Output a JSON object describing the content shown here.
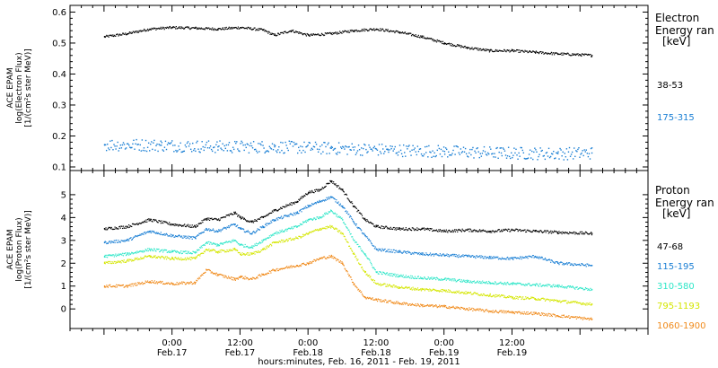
{
  "chart_data": [
    {
      "type": "scatter",
      "ylabel_lines": [
        "ACE EPAM",
        "log(Electron Flux)",
        "[1/(cm²s ster MeV)]"
      ],
      "ylim": [
        0.1,
        0.61
      ],
      "yticks": [
        0.1,
        0.2,
        0.3,
        0.4,
        0.5,
        0.6
      ],
      "yticklabels": [
        "0.1",
        "0.2",
        "0.3",
        "0.4",
        "0.5",
        "0.6"
      ],
      "legend_title_lines": [
        "Electron",
        "Energy ran",
        "[keV]"
      ],
      "legend_placement": "right",
      "grid": false,
      "series": [
        {
          "name": "38-53",
          "color": "#000000",
          "points": [
            [
              0,
              0.52
            ],
            [
              4,
              0.53
            ],
            [
              8,
              0.545
            ],
            [
              12,
              0.55
            ],
            [
              16,
              0.548
            ],
            [
              20,
              0.545
            ],
            [
              24,
              0.55
            ],
            [
              28,
              0.542
            ],
            [
              30,
              0.525
            ],
            [
              33,
              0.54
            ],
            [
              36,
              0.525
            ],
            [
              40,
              0.53
            ],
            [
              44,
              0.54
            ],
            [
              48,
              0.545
            ],
            [
              52,
              0.535
            ],
            [
              56,
              0.52
            ],
            [
              60,
              0.5
            ],
            [
              64,
              0.485
            ],
            [
              68,
              0.475
            ],
            [
              72,
              0.475
            ],
            [
              76,
              0.47
            ],
            [
              80,
              0.465
            ],
            [
              84,
              0.462
            ],
            [
              86,
              0.46
            ]
          ]
        },
        {
          "name": "175-315",
          "color": "#1a7fd4",
          "points": [
            [
              0,
              0.172
            ],
            [
              10,
              0.17
            ],
            [
              20,
              0.165
            ],
            [
              30,
              0.165
            ],
            [
              40,
              0.16
            ],
            [
              50,
              0.155
            ],
            [
              60,
              0.15
            ],
            [
              70,
              0.145
            ],
            [
              80,
              0.143
            ],
            [
              86,
              0.145
            ]
          ]
        }
      ]
    },
    {
      "type": "scatter",
      "ylabel_lines": [
        "ACE EPAM",
        "log(Proton Flux)",
        "[1/(cm²s ster MeV)]"
      ],
      "ylim": [
        -0.7,
        5.9
      ],
      "yticks": [
        0,
        1,
        2,
        3,
        4,
        5
      ],
      "yticklabels": [
        "0",
        "1",
        "2",
        "3",
        "4",
        "5"
      ],
      "legend_title_lines": [
        "Proton",
        "Energy ran",
        "[keV]"
      ],
      "legend_placement": "right",
      "grid": false,
      "series": [
        {
          "name": "47-68",
          "color": "#000000",
          "points": [
            [
              0,
              3.5
            ],
            [
              4,
              3.6
            ],
            [
              8,
              3.9
            ],
            [
              12,
              3.7
            ],
            [
              16,
              3.6
            ],
            [
              18,
              3.95
            ],
            [
              20,
              3.9
            ],
            [
              23,
              4.2
            ],
            [
              24,
              4.0
            ],
            [
              26,
              3.8
            ],
            [
              28,
              4.0
            ],
            [
              30,
              4.3
            ],
            [
              34,
              4.7
            ],
            [
              36,
              5.1
            ],
            [
              38,
              5.2
            ],
            [
              40,
              5.6
            ],
            [
              42,
              5.2
            ],
            [
              44,
              4.5
            ],
            [
              46,
              3.9
            ],
            [
              48,
              3.6
            ],
            [
              52,
              3.5
            ],
            [
              56,
              3.5
            ],
            [
              60,
              3.4
            ],
            [
              64,
              3.45
            ],
            [
              68,
              3.4
            ],
            [
              72,
              3.45
            ],
            [
              76,
              3.4
            ],
            [
              80,
              3.35
            ],
            [
              86,
              3.3
            ]
          ]
        },
        {
          "name": "115-195",
          "color": "#1a7fd4",
          "points": [
            [
              0,
              2.9
            ],
            [
              4,
              3.0
            ],
            [
              8,
              3.4
            ],
            [
              12,
              3.2
            ],
            [
              16,
              3.1
            ],
            [
              18,
              3.5
            ],
            [
              20,
              3.4
            ],
            [
              23,
              3.7
            ],
            [
              24,
              3.5
            ],
            [
              26,
              3.3
            ],
            [
              28,
              3.6
            ],
            [
              30,
              3.9
            ],
            [
              34,
              4.2
            ],
            [
              36,
              4.5
            ],
            [
              38,
              4.7
            ],
            [
              40,
              4.9
            ],
            [
              42,
              4.5
            ],
            [
              44,
              3.8
            ],
            [
              46,
              3.2
            ],
            [
              48,
              2.6
            ],
            [
              52,
              2.5
            ],
            [
              56,
              2.4
            ],
            [
              60,
              2.35
            ],
            [
              64,
              2.3
            ],
            [
              68,
              2.25
            ],
            [
              72,
              2.2
            ],
            [
              76,
              2.3
            ],
            [
              80,
              2.0
            ],
            [
              86,
              1.9
            ]
          ]
        },
        {
          "name": "310-580",
          "color": "#2ee6c8",
          "points": [
            [
              0,
              2.3
            ],
            [
              4,
              2.4
            ],
            [
              8,
              2.6
            ],
            [
              12,
              2.5
            ],
            [
              16,
              2.45
            ],
            [
              18,
              2.9
            ],
            [
              20,
              2.8
            ],
            [
              23,
              3.0
            ],
            [
              24,
              2.8
            ],
            [
              26,
              2.7
            ],
            [
              28,
              3.0
            ],
            [
              30,
              3.3
            ],
            [
              34,
              3.6
            ],
            [
              36,
              3.9
            ],
            [
              38,
              4.0
            ],
            [
              40,
              4.3
            ],
            [
              42,
              3.9
            ],
            [
              44,
              3.0
            ],
            [
              46,
              2.4
            ],
            [
              48,
              1.6
            ],
            [
              52,
              1.45
            ],
            [
              56,
              1.35
            ],
            [
              60,
              1.3
            ],
            [
              64,
              1.2
            ],
            [
              68,
              1.15
            ],
            [
              72,
              1.1
            ],
            [
              76,
              1.05
            ],
            [
              80,
              1.0
            ],
            [
              86,
              0.85
            ]
          ]
        },
        {
          "name": "795-1193",
          "color": "#d4e600",
          "points": [
            [
              0,
              2.0
            ],
            [
              4,
              2.1
            ],
            [
              8,
              2.3
            ],
            [
              12,
              2.2
            ],
            [
              16,
              2.2
            ],
            [
              18,
              2.6
            ],
            [
              20,
              2.5
            ],
            [
              23,
              2.6
            ],
            [
              24,
              2.4
            ],
            [
              26,
              2.4
            ],
            [
              28,
              2.6
            ],
            [
              30,
              2.9
            ],
            [
              34,
              3.1
            ],
            [
              36,
              3.3
            ],
            [
              38,
              3.5
            ],
            [
              40,
              3.6
            ],
            [
              42,
              3.3
            ],
            [
              44,
              2.4
            ],
            [
              46,
              1.6
            ],
            [
              48,
              1.1
            ],
            [
              52,
              0.95
            ],
            [
              56,
              0.85
            ],
            [
              60,
              0.8
            ],
            [
              64,
              0.7
            ],
            [
              68,
              0.6
            ],
            [
              72,
              0.5
            ],
            [
              76,
              0.45
            ],
            [
              80,
              0.35
            ],
            [
              86,
              0.2
            ]
          ]
        },
        {
          "name": "1060-1900",
          "color": "#f08a1a",
          "points": [
            [
              0,
              1.0
            ],
            [
              4,
              1.0
            ],
            [
              8,
              1.2
            ],
            [
              12,
              1.1
            ],
            [
              16,
              1.15
            ],
            [
              18,
              1.7
            ],
            [
              20,
              1.5
            ],
            [
              23,
              1.3
            ],
            [
              24,
              1.4
            ],
            [
              26,
              1.3
            ],
            [
              28,
              1.5
            ],
            [
              30,
              1.7
            ],
            [
              34,
              1.9
            ],
            [
              36,
              2.0
            ],
            [
              38,
              2.2
            ],
            [
              40,
              2.3
            ],
            [
              42,
              2.0
            ],
            [
              44,
              1.1
            ],
            [
              46,
              0.5
            ],
            [
              48,
              0.4
            ],
            [
              52,
              0.25
            ],
            [
              56,
              0.15
            ],
            [
              60,
              0.1
            ],
            [
              64,
              0.0
            ],
            [
              68,
              -0.1
            ],
            [
              72,
              -0.15
            ],
            [
              76,
              -0.2
            ],
            [
              80,
              -0.3
            ],
            [
              86,
              -0.45
            ]
          ]
        }
      ]
    }
  ],
  "x_axis": {
    "xlim": [
      -6,
      96
    ],
    "ticks": [
      {
        "x": 12,
        "time": "0:00",
        "date": "Feb.17"
      },
      {
        "x": 24,
        "time": "12:00",
        "date": "Feb.17"
      },
      {
        "x": 36,
        "time": "0:00",
        "date": "Feb.18"
      },
      {
        "x": 48,
        "time": "12:00",
        "date": "Feb.18"
      },
      {
        "x": 60,
        "time": "0:00",
        "date": "Feb.19"
      },
      {
        "x": 72,
        "time": "12:00",
        "date": "Feb.19"
      }
    ],
    "xlabel": "hours:minutes, Feb. 16, 2011 - Feb. 19, 2011"
  }
}
